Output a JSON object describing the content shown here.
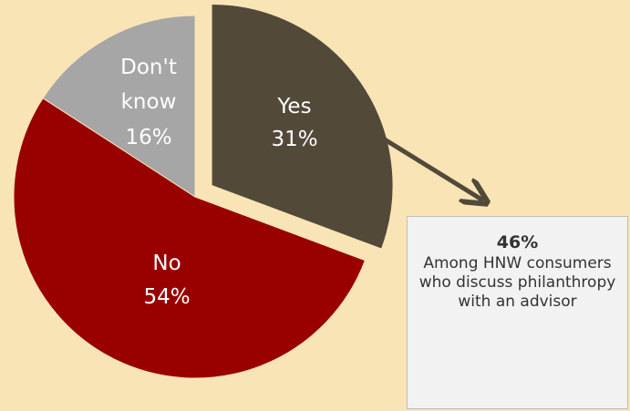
{
  "chart_data": {
    "type": "pie",
    "categories": [
      "Yes",
      "No",
      "Don't know"
    ],
    "values": [
      31,
      54,
      16
    ],
    "slice_labels": [
      {
        "category": "Yes",
        "percent": "31%"
      },
      {
        "category": "No",
        "percent": "54%"
      },
      {
        "category": "Don't know",
        "percent": "16%"
      }
    ],
    "colors": [
      "#524939",
      "#990000",
      "#a6a6a6"
    ],
    "exploded_slice": "Yes",
    "callout": {
      "value": "46%",
      "text": "Among HNW consumers who discuss philanthropy with an advisor",
      "linked_slice": "Yes",
      "arrow_color": "#524939"
    }
  }
}
